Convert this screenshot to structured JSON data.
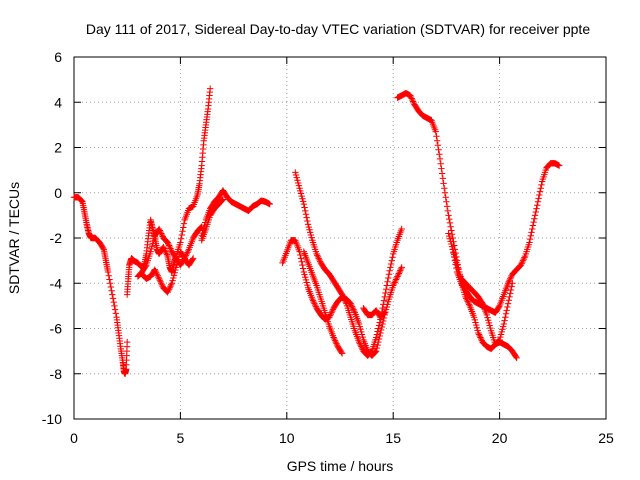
{
  "chart_data": {
    "type": "scatter",
    "title": "Day 111 of 2017, Sidereal Day-to-day VTEC variation (SDTVAR) for receiver ppte",
    "xlabel": "GPS time / hours",
    "ylabel": "SDTVAR / TECUs",
    "xlim": [
      0,
      25
    ],
    "ylim": [
      -10,
      6
    ],
    "xticks": [
      0,
      5,
      10,
      15,
      20,
      25
    ],
    "yticks": [
      -10,
      -8,
      -6,
      -4,
      -2,
      0,
      2,
      4,
      6
    ],
    "grid": true,
    "marker": "+",
    "color": "#ff0000",
    "series": [
      {
        "x": [
          0,
          0.2,
          0.4,
          0.5,
          0.6,
          0.7,
          0.8,
          1.0,
          1.2,
          1.4,
          1.5,
          1.6,
          1.8,
          2.0,
          2.1,
          2.2,
          2.3,
          2.35,
          2.4,
          2.45,
          2.5
        ],
        "y": [
          -0.2,
          -0.2,
          -0.4,
          -0.9,
          -1.4,
          -1.8,
          -2.0,
          -2.0,
          -2.2,
          -2.5,
          -3.0,
          -3.5,
          -4.5,
          -5.5,
          -6.2,
          -6.9,
          -7.5,
          -7.9,
          -8.0,
          -7.8,
          -6.6
        ]
      },
      {
        "x": [
          2.5,
          2.55,
          2.6,
          2.7,
          2.8,
          3.0,
          3.2,
          3.3,
          3.4,
          3.5,
          3.6,
          3.7,
          3.8,
          3.9,
          4.0,
          4.2,
          4.4,
          4.5,
          4.6,
          4.7,
          4.8,
          5.0,
          5.2,
          5.4,
          5.6,
          5.8,
          5.9,
          6.0,
          6.1,
          6.2,
          6.3,
          6.4
        ],
        "y": [
          -4.5,
          -3.8,
          -3.2,
          -2.9,
          -3.0,
          -3.1,
          -3.3,
          -3.2,
          -2.7,
          -1.9,
          -1.2,
          -1.6,
          -2.0,
          -2.5,
          -2.7,
          -2.4,
          -2.8,
          -3.3,
          -3.5,
          -3.1,
          -2.8,
          -2.2,
          -1.2,
          -0.7,
          -0.6,
          -0.1,
          0.4,
          1.2,
          2.3,
          3.0,
          3.7,
          4.6
        ]
      },
      {
        "x": [
          3.0,
          3.2,
          3.4,
          3.6,
          3.8,
          4.0,
          4.2,
          4.4,
          4.6,
          4.8,
          5.0,
          5.2,
          5.4,
          5.6,
          5.8,
          6.0
        ],
        "y": [
          -3.7,
          -3.5,
          -3.2,
          -2.6,
          -1.9,
          -1.6,
          -2.0,
          -2.2,
          -2.6,
          -2.9,
          -3.2,
          -2.9,
          -2.5,
          -2.0,
          -1.7,
          -1.5
        ]
      },
      {
        "x": [
          3.2,
          3.4,
          3.6,
          3.8,
          4.0,
          4.2,
          4.4,
          4.6,
          4.8,
          5.0,
          5.2,
          5.4,
          5.6
        ],
        "y": [
          -3.6,
          -3.8,
          -3.7,
          -3.4,
          -3.8,
          -4.2,
          -4.4,
          -4.0,
          -3.3,
          -2.6,
          -2.9,
          -3.2,
          -2.9
        ]
      },
      {
        "x": [
          6.0,
          6.2,
          6.4,
          6.6,
          6.8,
          7.0,
          7.2,
          7.4,
          7.6,
          7.8,
          8.0,
          8.2,
          8.4,
          8.6,
          8.8,
          9.0,
          9.2
        ],
        "y": [
          -1.9,
          -1.2,
          -0.7,
          -0.4,
          -0.2,
          0.1,
          -0.2,
          -0.4,
          -0.5,
          -0.6,
          -0.7,
          -0.8,
          -0.6,
          -0.5,
          -0.35,
          -0.4,
          -0.5
        ]
      },
      {
        "x": [
          6.0,
          6.2,
          6.4,
          6.6,
          6.8,
          7.0
        ],
        "y": [
          -2.1,
          -1.6,
          -1.0,
          -0.7,
          -0.5,
          -0.3
        ]
      },
      {
        "x": [
          9.8,
          10.0,
          10.2,
          10.4,
          10.6,
          10.8,
          11.0,
          11.2,
          11.4,
          11.6,
          11.8,
          12.0,
          12.2,
          12.4,
          12.6,
          12.8,
          13.0,
          13.2,
          13.4,
          13.6,
          13.8,
          14.0,
          14.2,
          14.4,
          14.6,
          14.8,
          15.0,
          15.2,
          15.4
        ],
        "y": [
          -3.1,
          -2.6,
          -2.1,
          -2.1,
          -2.6,
          -3.5,
          -4.2,
          -4.7,
          -5.1,
          -5.4,
          -5.6,
          -5.5,
          -5.1,
          -4.8,
          -4.6,
          -4.7,
          -4.9,
          -5.3,
          -5.8,
          -6.5,
          -7.0,
          -7.2,
          -7.0,
          -6.2,
          -5.4,
          -4.7,
          -4.1,
          -3.7,
          -3.3
        ]
      },
      {
        "x": [
          10.4,
          10.6,
          10.8,
          11.0,
          11.2,
          11.4,
          11.6,
          11.8,
          12.0,
          12.2,
          12.4,
          12.6,
          12.8,
          13.0,
          13.2,
          13.4,
          13.6,
          13.8,
          14.0,
          14.2,
          14.4,
          14.6,
          14.8,
          15.0,
          15.2,
          15.4
        ],
        "y": [
          0.9,
          0.2,
          -0.5,
          -1.4,
          -2.1,
          -2.7,
          -3.1,
          -3.4,
          -3.6,
          -3.9,
          -4.2,
          -4.5,
          -4.9,
          -5.5,
          -6.1,
          -6.6,
          -7.0,
          -7.2,
          -7.0,
          -6.4,
          -5.6,
          -4.6,
          -3.6,
          -2.7,
          -2.1,
          -1.6
        ]
      },
      {
        "x": [
          10.8,
          11.0,
          11.2,
          11.4,
          11.6,
          11.8,
          12.0,
          12.2,
          12.4,
          12.6
        ],
        "y": [
          -2.6,
          -3.1,
          -3.6,
          -4.1,
          -4.7,
          -5.3,
          -5.9,
          -6.4,
          -6.8,
          -7.1
        ]
      },
      {
        "x": [
          13.6,
          13.8,
          14.0,
          14.2,
          14.4,
          14.6
        ],
        "y": [
          -5.1,
          -5.4,
          -5.4,
          -5.2,
          -5.5,
          -5.3
        ]
      },
      {
        "x": [
          15.2,
          15.4,
          15.6,
          15.8,
          16.0,
          16.2,
          16.4,
          16.6,
          16.8,
          17.0,
          17.2,
          17.4,
          17.6,
          17.8,
          18.0,
          18.2,
          18.4,
          18.6,
          18.8,
          19.0,
          19.2,
          19.4,
          19.6,
          19.8,
          20.0,
          20.2,
          20.4,
          20.6,
          20.8
        ],
        "y": [
          4.2,
          4.3,
          4.4,
          4.3,
          3.9,
          3.6,
          3.4,
          3.3,
          3.2,
          2.7,
          1.5,
          0.2,
          -1.0,
          -2.0,
          -3.0,
          -4.0,
          -4.6,
          -5.0,
          -5.5,
          -6.2,
          -6.6,
          -6.8,
          -6.9,
          -6.7,
          -6.6,
          -6.7,
          -6.8,
          -7.0,
          -7.3
        ]
      },
      {
        "x": [
          17.6,
          17.8,
          18.0,
          18.2,
          18.4,
          18.6,
          18.8,
          19.0,
          19.2,
          19.4,
          19.6,
          19.8,
          20.0,
          20.2,
          20.4,
          20.6,
          20.8,
          21.0,
          21.2,
          21.4,
          21.6,
          21.8,
          22.0,
          22.2,
          22.4,
          22.6,
          22.8
        ],
        "y": [
          -1.8,
          -2.5,
          -3.5,
          -4.0,
          -4.3,
          -4.6,
          -4.8,
          -4.9,
          -5.0,
          -5.1,
          -5.2,
          -5.3,
          -5.0,
          -4.5,
          -4.0,
          -3.6,
          -3.4,
          -3.2,
          -2.8,
          -2.2,
          -1.3,
          -0.4,
          0.5,
          1.1,
          1.3,
          1.3,
          1.2
        ]
      },
      {
        "x": [
          17.8,
          18.0,
          18.2,
          18.4,
          18.6,
          18.8,
          19.0,
          19.2,
          19.4,
          19.6,
          19.8,
          20.0,
          20.2,
          20.4,
          20.6
        ],
        "y": [
          -2.5,
          -3.2,
          -3.8,
          -4.0,
          -4.2,
          -4.4,
          -4.6,
          -4.9,
          -5.4,
          -6.1,
          -6.7,
          -6.5,
          -5.8,
          -4.9,
          -4.0
        ]
      }
    ]
  }
}
